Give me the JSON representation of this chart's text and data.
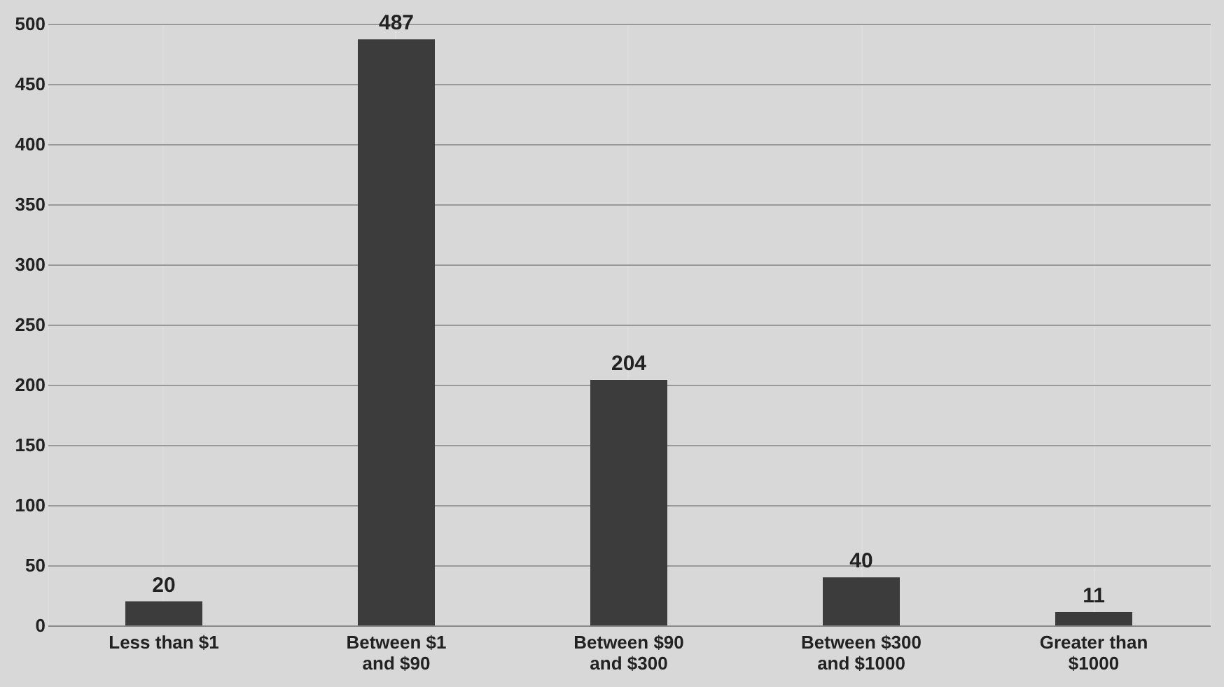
{
  "chart_data": {
    "type": "bar",
    "categories": [
      "Less than $1",
      "Between $1 and $90",
      "Between $90 and $300",
      "Between $300 and $1000",
      "Greater than $1000"
    ],
    "values": [
      20,
      487,
      204,
      40,
      11
    ],
    "color": "#3c3c3c",
    "ylim": [
      0,
      500
    ],
    "yticks": [
      0,
      50,
      100,
      150,
      200,
      250,
      300,
      350,
      400,
      450,
      500
    ],
    "grid": true,
    "data_labels": true
  }
}
